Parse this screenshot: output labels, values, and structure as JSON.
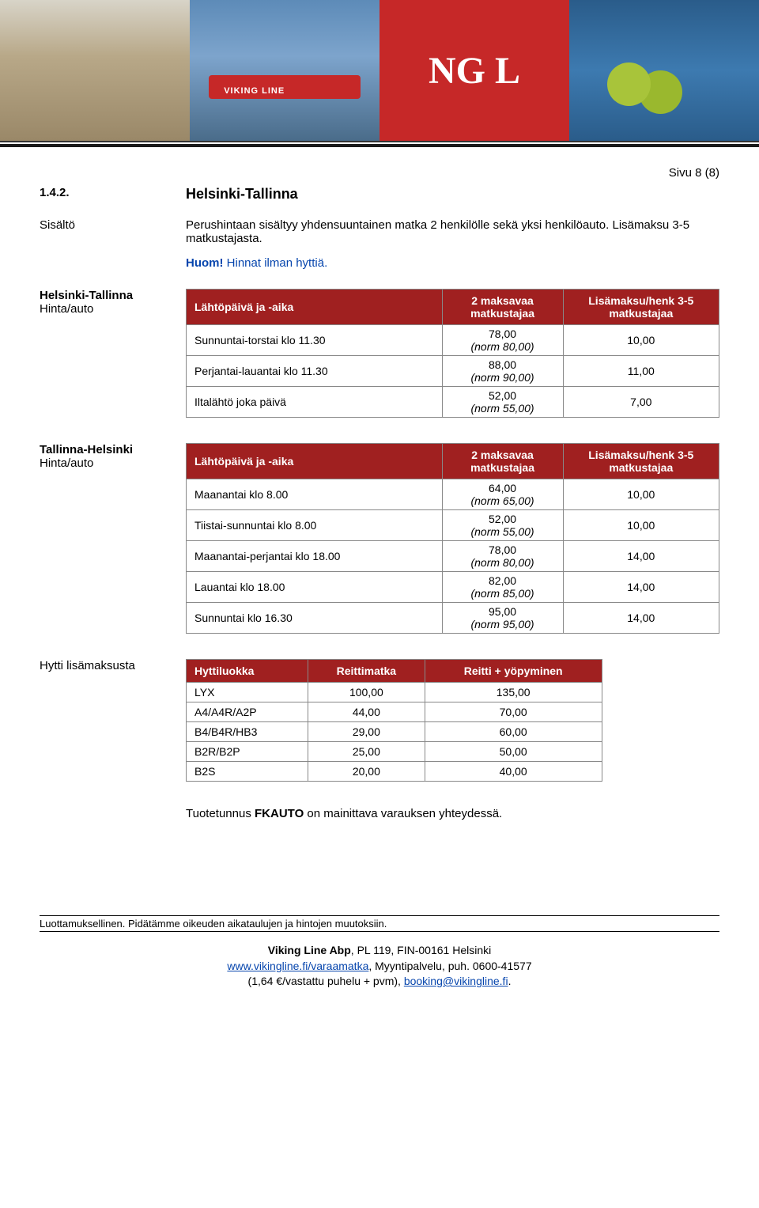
{
  "banner": {
    "ship_label": "VIKING LINE",
    "brand_fragment": "NG L"
  },
  "page_marker": "Sivu 8 (8)",
  "section": {
    "number": "1.4.2.",
    "title": "Helsinki-Tallinna"
  },
  "content": {
    "sisalto_label": "Sisältö",
    "sisalto_text": "Perushintaan sisältyy yhdensuuntainen matka 2 henkilölle sekä yksi henkilöauto. Lisämaksu 3-5 matkustajasta.",
    "huom_label": "Huom!",
    "huom_text": "Hinnat ilman hyttiä."
  },
  "table1": {
    "label": "Helsinki-Tallinna",
    "sublabel": "Hinta/auto",
    "headers": [
      "Lähtöpäivä ja -aika",
      "2 maksavaa matkustajaa",
      "Lisämaksu/henk 3-5 matkustajaa"
    ],
    "rows": [
      {
        "desc": "Sunnuntai-torstai klo 11.30",
        "price": "78,00",
        "norm": "(norm 80,00)",
        "extra": "10,00"
      },
      {
        "desc": "Perjantai-lauantai klo 11.30",
        "price": "88,00",
        "norm": "(norm 90,00)",
        "extra": "11,00"
      },
      {
        "desc": "Iltalähtö joka päivä",
        "price": "52,00",
        "norm": "(norm 55,00)",
        "extra": "7,00"
      }
    ]
  },
  "table2": {
    "label": "Tallinna-Helsinki",
    "sublabel": "Hinta/auto",
    "headers": [
      "Lähtöpäivä ja -aika",
      "2 maksavaa matkustajaa",
      "Lisämaksu/henk 3-5 matkustajaa"
    ],
    "rows": [
      {
        "desc": "Maanantai klo 8.00",
        "price": "64,00",
        "norm": "(norm 65,00)",
        "extra": "10,00"
      },
      {
        "desc": "Tiistai-sunnuntai klo 8.00",
        "price": "52,00",
        "norm": "(norm 55,00)",
        "extra": "10,00"
      },
      {
        "desc": "Maanantai-perjantai klo 18.00",
        "price": "78,00",
        "norm": "(norm 80,00)",
        "extra": "14,00"
      },
      {
        "desc": "Lauantai klo 18.00",
        "price": "82,00",
        "norm": "(norm 85,00)",
        "extra": "14,00"
      },
      {
        "desc": "Sunnuntai klo 16.30",
        "price": "95,00",
        "norm": "(norm 95,00)",
        "extra": "14,00"
      }
    ]
  },
  "table3": {
    "label": "Hytti lisämaksusta",
    "headers": [
      "Hyttiluokka",
      "Reittimatka",
      "Reitti + yöpyminen"
    ],
    "rows": [
      {
        "cls": "LYX",
        "a": "100,00",
        "b": "135,00"
      },
      {
        "cls": "A4/A4R/A2P",
        "a": "44,00",
        "b": "70,00"
      },
      {
        "cls": "B4/B4R/HB3",
        "a": "29,00",
        "b": "60,00"
      },
      {
        "cls": "B2R/B2P",
        "a": "25,00",
        "b": "50,00"
      },
      {
        "cls": "B2S",
        "a": "20,00",
        "b": "40,00"
      }
    ]
  },
  "note": {
    "pre": "Tuotetunnus ",
    "code": "FKAUTO",
    "post": " on mainittava varauksen yhteydessä."
  },
  "footer": {
    "confidential": "Luottamuksellinen. Pidätämme oikeuden aikataulujen ja hintojen muutoksiin.",
    "company": "Viking Line Abp",
    "address": ", PL 119, FIN-00161 Helsinki",
    "link1": "www.vikingline.fi/varaamatka",
    "line2_rest": ", Myyntipalvelu, puh. 0600-41577",
    "line3_pre": "(1,64 €/vastattu puhelu + pvm), ",
    "email": "booking@vikingline.fi",
    "line3_post": "."
  },
  "colors": {
    "header_bg": "#a02020",
    "header_text": "#ffffff",
    "border": "#888888",
    "link": "#0645ad"
  }
}
